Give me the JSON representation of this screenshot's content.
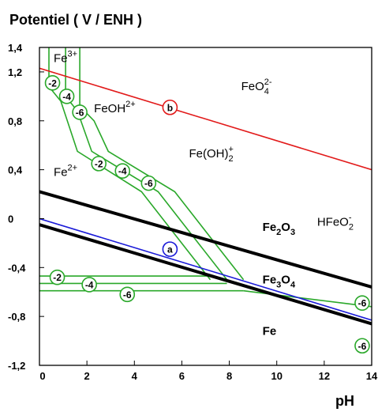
{
  "chart_data": {
    "type": "line",
    "title": "",
    "xlabel": "pH",
    "ylabel": "Potentiel ( V / ENH )",
    "xlim": [
      0,
      14
    ],
    "ylim": [
      -1.2,
      1.4
    ],
    "x_ticks": [
      "0",
      "2",
      "4",
      "6",
      "8",
      "10",
      "12",
      "14"
    ],
    "y_ticks": [
      "1,4",
      "1,2",
      "0,8",
      "0,4",
      "0",
      "-0,4",
      "-0,8",
      "-1,2"
    ],
    "y_tick_values": [
      1.4,
      1.2,
      0.8,
      0.4,
      0,
      -0.4,
      -0.8,
      -1.2
    ],
    "colors": {
      "water": "#e21a1a",
      "water_low": "#1a1ad8",
      "fe_boundaries": "#2aa82a",
      "thick": "#000000"
    },
    "water_lines": [
      {
        "label": "b",
        "points": [
          [
            0,
            1.23
          ],
          [
            14,
            0.4
          ]
        ],
        "color": "#e21a1a"
      },
      {
        "label": "a",
        "points": [
          [
            0,
            0.0
          ],
          [
            14,
            -0.83
          ]
        ],
        "color": "#1a1ad8"
      }
    ],
    "thick_boundaries": [
      {
        "points": [
          [
            0,
            0.22
          ],
          [
            14,
            -0.56
          ]
        ]
      },
      {
        "points": [
          [
            0,
            -0.05
          ],
          [
            14,
            -0.86
          ]
        ]
      }
    ],
    "green_boundaries": [
      {
        "conc": "-2",
        "points": [
          [
            0.4,
            1.48
          ],
          [
            0.4,
            1.08
          ],
          [
            0.9,
            0.96
          ],
          [
            1.6,
            0.55
          ],
          [
            4.3,
            0.22
          ],
          [
            7.2,
            -0.5
          ]
        ]
      },
      {
        "conc": "-4",
        "points": [
          [
            1.1,
            1.48
          ],
          [
            1.1,
            1.0
          ],
          [
            1.6,
            0.88
          ],
          [
            2.2,
            0.55
          ],
          [
            5.0,
            0.22
          ],
          [
            7.9,
            -0.5
          ]
        ]
      },
      {
        "conc": "-6",
        "points": [
          [
            1.7,
            1.48
          ],
          [
            1.7,
            0.92
          ],
          [
            2.3,
            0.8
          ],
          [
            2.9,
            0.55
          ],
          [
            5.7,
            0.22
          ],
          [
            8.6,
            -0.5
          ]
        ]
      },
      {
        "conc": "-2",
        "points": [
          [
            0,
            -0.47
          ],
          [
            7.2,
            -0.47
          ]
        ]
      },
      {
        "conc": "-4",
        "points": [
          [
            0,
            -0.53
          ],
          [
            7.9,
            -0.53
          ]
        ]
      },
      {
        "conc": "-6",
        "points": [
          [
            0,
            -0.59
          ],
          [
            8.6,
            -0.59
          ]
        ]
      },
      {
        "conc": "-6",
        "points": [
          [
            8.6,
            -0.59
          ],
          [
            14,
            -0.72
          ]
        ]
      }
    ],
    "markers": [
      {
        "text": "b",
        "x": 5.5,
        "y": 0.91,
        "color": "#e21a1a"
      },
      {
        "text": "a",
        "x": 5.5,
        "y": -0.25,
        "color": "#1a1ad8"
      },
      {
        "text": "-2",
        "x": 0.55,
        "y": 1.11,
        "color": "#2aa82a"
      },
      {
        "text": "-4",
        "x": 1.15,
        "y": 1.0,
        "color": "#2aa82a"
      },
      {
        "text": "-6",
        "x": 1.7,
        "y": 0.87,
        "color": "#2aa82a"
      },
      {
        "text": "-2",
        "x": 2.5,
        "y": 0.45,
        "color": "#2aa82a"
      },
      {
        "text": "-4",
        "x": 3.5,
        "y": 0.39,
        "color": "#2aa82a"
      },
      {
        "text": "-6",
        "x": 4.6,
        "y": 0.29,
        "color": "#2aa82a"
      },
      {
        "text": "-2",
        "x": 0.75,
        "y": -0.48,
        "color": "#2aa82a"
      },
      {
        "text": "-4",
        "x": 2.1,
        "y": -0.54,
        "color": "#2aa82a"
      },
      {
        "text": "-6",
        "x": 3.7,
        "y": -0.62,
        "color": "#2aa82a"
      },
      {
        "text": "-6",
        "x": 13.6,
        "y": -0.69,
        "color": "#2aa82a"
      },
      {
        "text": "-6",
        "x": 13.6,
        "y": -1.04,
        "color": "#2aa82a"
      }
    ],
    "species_labels": [
      {
        "base": "Fe",
        "sup": "3+",
        "sub": "",
        "x": 0.6,
        "y": 1.28,
        "bold": false
      },
      {
        "base": "FeOH",
        "sup": "2+",
        "sub": "",
        "x": 2.3,
        "y": 0.87,
        "bold": false
      },
      {
        "base": "FeO",
        "sup": "2-",
        "sub": "4",
        "x": 8.5,
        "y": 1.05,
        "bold": false
      },
      {
        "base": "Fe(OH)",
        "sup": "+",
        "sub": "2",
        "x": 6.3,
        "y": 0.5,
        "bold": false
      },
      {
        "base": "Fe",
        "sup": "2+",
        "sub": "",
        "x": 0.6,
        "y": 0.35,
        "bold": false
      },
      {
        "base": "Fe",
        "sup": "",
        "sub": "2",
        "tail": "O",
        "tail_sub": "3",
        "x": 9.4,
        "y": -0.1,
        "bold": true
      },
      {
        "base": "HFeO",
        "sup": "-",
        "sub": "2",
        "x": 11.7,
        "y": -0.06,
        "bold": false
      },
      {
        "base": "Fe",
        "sup": "",
        "sub": "3",
        "tail": "O",
        "tail_sub": "4",
        "x": 9.4,
        "y": -0.53,
        "bold": true
      },
      {
        "base": "Fe",
        "sup": "",
        "sub": "",
        "x": 9.4,
        "y": -0.95,
        "bold": true
      }
    ]
  }
}
